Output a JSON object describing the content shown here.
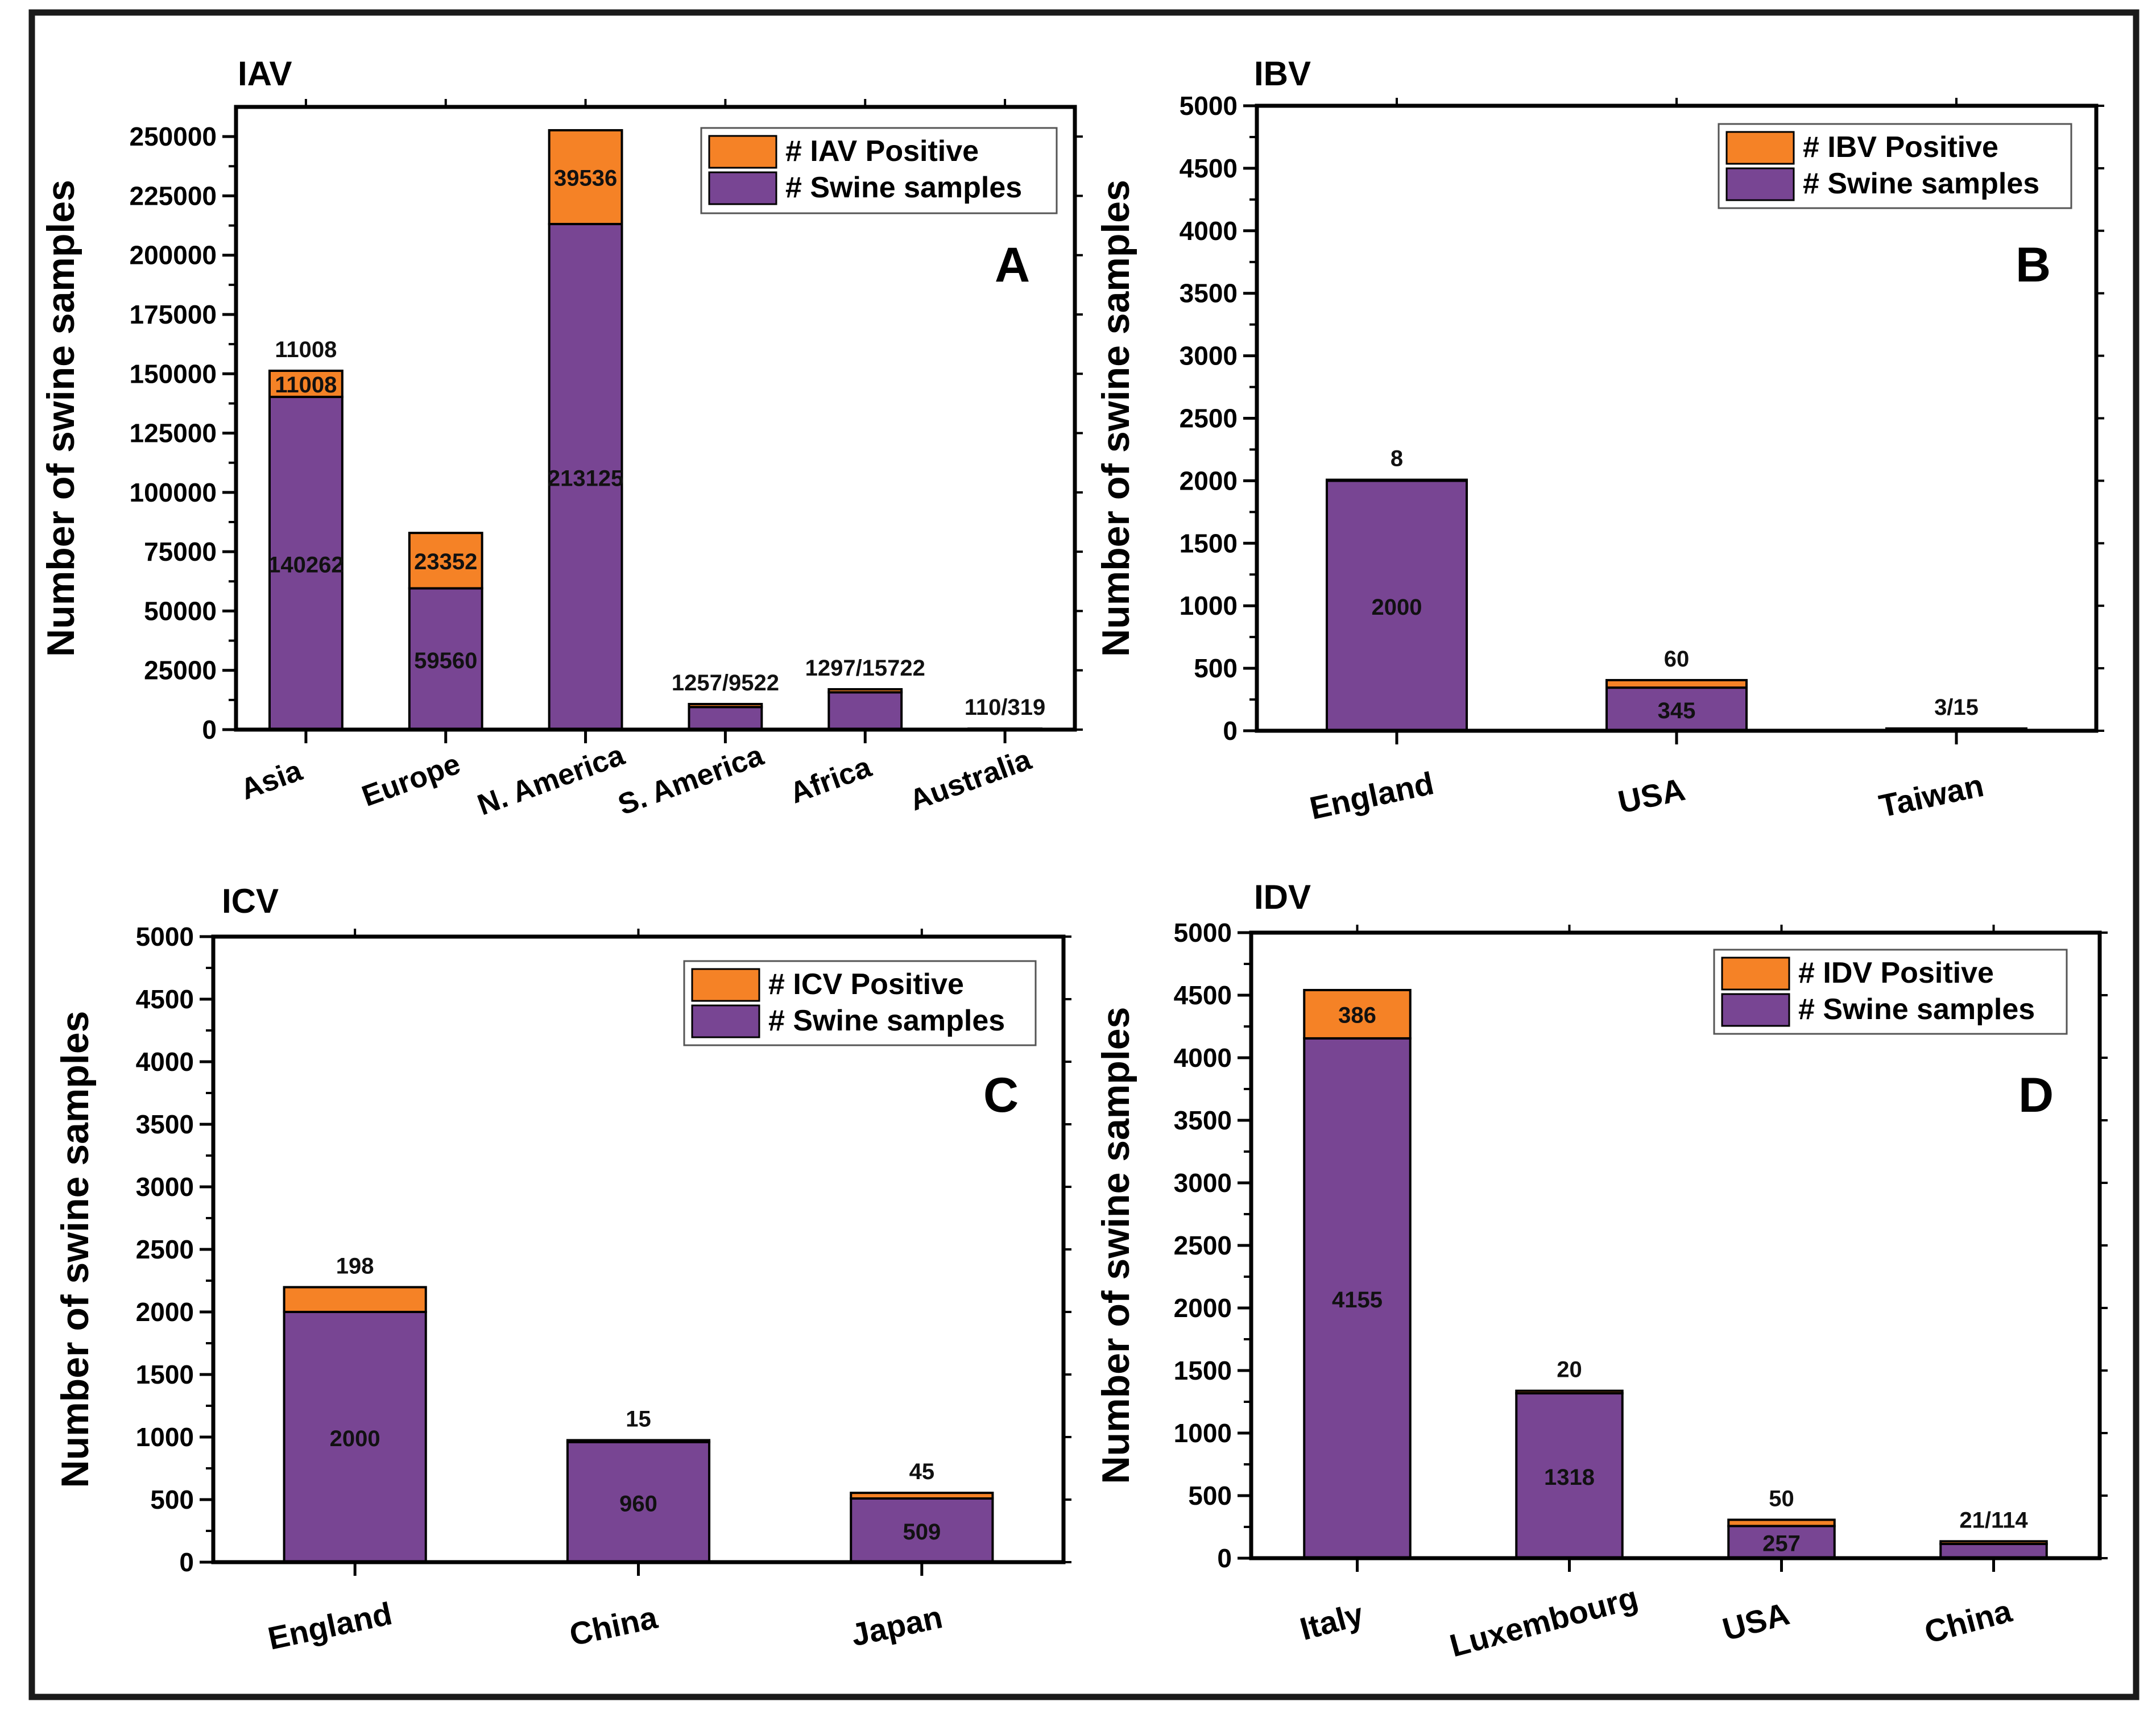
{
  "colors": {
    "positive": "#F58226",
    "samples": "#784593",
    "axis": "#000000",
    "frame": "#1a1a1a"
  },
  "chart_data": [
    {
      "id": "A",
      "virus": "IAV",
      "type": "bar",
      "title": "IAV",
      "panel_letter": "A",
      "ylabel": "Number of swine samples",
      "ylim": [
        0,
        262500
      ],
      "yticks": [
        0,
        25000,
        50000,
        75000,
        100000,
        125000,
        150000,
        175000,
        200000,
        225000,
        250000
      ],
      "legend": {
        "position": "top-right",
        "entries": [
          "# IAV Positive",
          "# Swine samples"
        ]
      },
      "categories": [
        "Asia",
        "Europe",
        "N. America",
        "S. America",
        "Africa",
        "Australia"
      ],
      "series": [
        {
          "name": "# Swine samples",
          "values": [
            140262,
            59560,
            213125,
            9522,
            15722,
            319
          ]
        },
        {
          "name": "# IAV Positive",
          "values": [
            11008,
            23352,
            39536,
            1257,
            1297,
            110
          ]
        }
      ],
      "samples_labels": [
        "140262",
        "59560",
        "213125",
        "",
        "",
        ""
      ],
      "positive_labels": [
        "11008",
        "23352",
        "39536",
        "",
        "",
        ""
      ],
      "top_labels": [
        "11008",
        "",
        "",
        "1257/9522",
        "1297/15722",
        "110/319"
      ]
    },
    {
      "id": "B",
      "virus": "IBV",
      "type": "bar",
      "title": "IBV",
      "panel_letter": "B",
      "ylabel": "Number of swine samples",
      "ylim": [
        0,
        5000
      ],
      "yticks": [
        0,
        500,
        1000,
        1500,
        2000,
        2500,
        3000,
        3500,
        4000,
        4500,
        5000
      ],
      "legend": {
        "position": "top-right",
        "entries": [
          "# IBV Positive",
          "# Swine samples"
        ]
      },
      "categories": [
        "England",
        "USA",
        "Taiwan"
      ],
      "series": [
        {
          "name": "# Swine samples",
          "values": [
            2000,
            345,
            15
          ]
        },
        {
          "name": "# IBV Positive",
          "values": [
            8,
            60,
            3
          ]
        }
      ],
      "samples_labels": [
        "2000",
        "345",
        ""
      ],
      "positive_labels": [
        "",
        "",
        ""
      ],
      "top_labels": [
        "8",
        "60",
        "3/15"
      ]
    },
    {
      "id": "C",
      "virus": "ICV",
      "type": "bar",
      "title": "ICV",
      "panel_letter": "C",
      "ylabel": "Number of swine samples",
      "ylim": [
        0,
        5000
      ],
      "yticks": [
        0,
        500,
        1000,
        1500,
        2000,
        2500,
        3000,
        3500,
        4000,
        4500,
        5000
      ],
      "legend": {
        "position": "top-right",
        "entries": [
          "# ICV Positive",
          "# Swine samples"
        ]
      },
      "categories": [
        "England",
        "China",
        "Japan"
      ],
      "series": [
        {
          "name": "# Swine samples",
          "values": [
            2000,
            960,
            509
          ]
        },
        {
          "name": "# ICV Positive",
          "values": [
            198,
            15,
            45
          ]
        }
      ],
      "samples_labels": [
        "2000",
        "960",
        "509"
      ],
      "positive_labels": [
        "",
        "",
        ""
      ],
      "top_labels": [
        "198",
        "15",
        "45"
      ]
    },
    {
      "id": "D",
      "virus": "IDV",
      "type": "bar",
      "title": "IDV",
      "panel_letter": "D",
      "ylabel": "Number of swine samples",
      "ylim": [
        0,
        5000
      ],
      "yticks": [
        0,
        500,
        1000,
        1500,
        2000,
        2500,
        3000,
        3500,
        4000,
        4500,
        5000
      ],
      "legend": {
        "position": "top-right",
        "entries": [
          "# IDV Positive",
          "# Swine samples"
        ]
      },
      "categories": [
        "Italy",
        "Luxembourg",
        "USA",
        "China"
      ],
      "series": [
        {
          "name": "# Swine samples",
          "values": [
            4155,
            1318,
            257,
            114
          ]
        },
        {
          "name": "# IDV Positive",
          "values": [
            386,
            20,
            50,
            21
          ]
        }
      ],
      "samples_labels": [
        "4155",
        "1318",
        "257",
        ""
      ],
      "positive_labels": [
        "386",
        "",
        "",
        ""
      ],
      "top_labels": [
        "",
        "20",
        "50",
        "21/114"
      ]
    }
  ]
}
